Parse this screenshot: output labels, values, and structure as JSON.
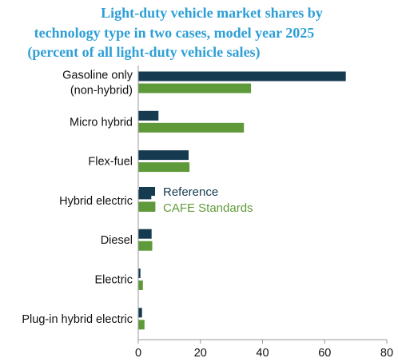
{
  "chart_data": {
    "type": "bar",
    "orientation": "horizontal",
    "title_lines": [
      "Light-duty vehicle market shares by",
      "technology type in two cases, model year 2025",
      "(percent of all light-duty vehicle sales)"
    ],
    "categories": [
      [
        "Gasoline only",
        "(non-hybrid)"
      ],
      [
        "Micro hybrid"
      ],
      [
        "Flex-fuel"
      ],
      [
        "Hybrid electric"
      ],
      [
        "Diesel"
      ],
      [
        "Electric"
      ],
      [
        "Plug-in hybrid electric"
      ]
    ],
    "series": [
      {
        "name": "Reference",
        "color": "#163a50",
        "values": [
          66.8,
          6.5,
          16.2,
          4.2,
          4.3,
          0.7,
          1.2
        ]
      },
      {
        "name": "CAFE Standards",
        "color": "#5f9a3a",
        "values": [
          36.3,
          34.0,
          16.5,
          5.5,
          4.5,
          1.5,
          2.0
        ]
      }
    ],
    "x_ticks": [
      0,
      20,
      40,
      60,
      80
    ],
    "xlim": [
      0,
      80
    ],
    "legend_position": "center-right",
    "colors": {
      "title": "#2e9fd6",
      "axis": "#999999",
      "text": "#111111"
    }
  }
}
